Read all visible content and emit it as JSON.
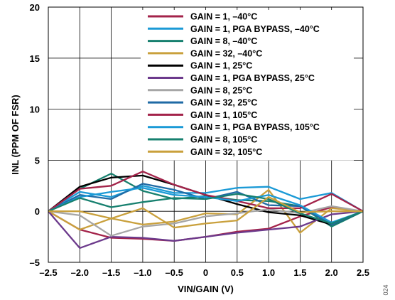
{
  "figure_id": "024",
  "chart_data": {
    "type": "line",
    "title": "",
    "xlabel": "VIN/GAIN (V)",
    "ylabel": "INL (PPM OF FSR)",
    "xlim": [
      -2.5,
      2.5
    ],
    "ylim": [
      -5,
      20
    ],
    "xticks": [
      -2.5,
      -2.0,
      -1.5,
      -1.0,
      -0.5,
      0,
      0.5,
      1.0,
      1.5,
      2.0,
      2.5
    ],
    "xtick_labels": [
      "–2.5",
      "–2.0",
      "–1.5",
      "–1.0",
      "–0.5",
      "0",
      "0.5",
      "1.0",
      "1.5",
      "2.0",
      "2.5"
    ],
    "yticks": [
      -5,
      0,
      5,
      10,
      15,
      20
    ],
    "ytick_labels": [
      "–5",
      "0",
      "5",
      "10",
      "15",
      "20"
    ],
    "grid": true,
    "legend_position": "top-right",
    "x": [
      -2.5,
      -2.0,
      -1.5,
      -1.0,
      -0.5,
      0,
      0.5,
      1.0,
      1.5,
      2.0,
      2.5
    ],
    "series": [
      {
        "name": "GAIN = 1, –40°C",
        "color": "#a3234a",
        "values": [
          0,
          -1.8,
          -2.6,
          -2.7,
          -2.9,
          -2.5,
          -2.0,
          -1.7,
          -0.5,
          0.4,
          0
        ]
      },
      {
        "name": "GAIN = 1, PGA BYPASS, –40°C",
        "color": "#1b9ad6",
        "values": [
          0,
          1.9,
          1.4,
          2.5,
          1.8,
          1.8,
          2.3,
          2.4,
          1.2,
          1.8,
          0
        ]
      },
      {
        "name": "GAIN = 8, –40°C",
        "color": "#17806f",
        "values": [
          0,
          2.2,
          3.7,
          2.0,
          1.2,
          1.5,
          1.1,
          1.0,
          0.5,
          -1.5,
          0
        ]
      },
      {
        "name": "GAIN = 32, –40°C",
        "color": "#c9a03c",
        "values": [
          0,
          -1.8,
          -0.7,
          -1.3,
          -1.0,
          -0.2,
          -0.3,
          2.1,
          -2.1,
          0.3,
          0
        ]
      },
      {
        "name": "GAIN = 1, 25°C",
        "color": "#000000",
        "values": [
          0,
          2.4,
          3.3,
          3.5,
          2.6,
          1.6,
          0.7,
          -0.1,
          -0.4,
          -1.3,
          0
        ]
      },
      {
        "name": "GAIN = 1, PGA BYPASS, 25°C",
        "color": "#6c3a8c",
        "values": [
          0,
          -3.6,
          -2.5,
          -2.6,
          -2.9,
          -2.5,
          -2.1,
          -1.8,
          -1.5,
          -0.3,
          0
        ]
      },
      {
        "name": "GAIN = 8, 25°C",
        "color": "#a6a6a6",
        "values": [
          0,
          -0.4,
          -2.4,
          -1.5,
          -1.2,
          -0.5,
          -0.2,
          0.2,
          -0.2,
          0.5,
          0
        ]
      },
      {
        "name": "GAIN = 32, 25°C",
        "color": "#1f6aa5",
        "values": [
          0,
          1.6,
          1.2,
          2.7,
          2.1,
          1.2,
          1.9,
          0.6,
          0.5,
          -1.3,
          0
        ]
      },
      {
        "name": "GAIN = 1, 105°C",
        "color": "#a3234a",
        "values": [
          0,
          2.2,
          2.5,
          3.9,
          2.6,
          1.6,
          1.0,
          0.3,
          0.3,
          1.7,
          0
        ]
      },
      {
        "name": "GAIN = 1, PGA BYPASS, 105°C",
        "color": "#1b9ad6",
        "values": [
          0,
          1.4,
          1.9,
          2.3,
          1.6,
          1.4,
          1.0,
          1.6,
          0.6,
          -1.1,
          0
        ]
      },
      {
        "name": "GAIN = 8, 105°C",
        "color": "#17806f",
        "values": [
          0,
          1.3,
          0.4,
          0.9,
          1.3,
          1.2,
          1.7,
          1.2,
          -0.2,
          -1.2,
          0
        ]
      },
      {
        "name": "GAIN = 32, 105°C",
        "color": "#c9a03c",
        "values": [
          0,
          0.0,
          -0.7,
          0.3,
          -1.6,
          -1.2,
          -0.9,
          1.4,
          -0.1,
          0.0,
          0
        ]
      }
    ]
  }
}
